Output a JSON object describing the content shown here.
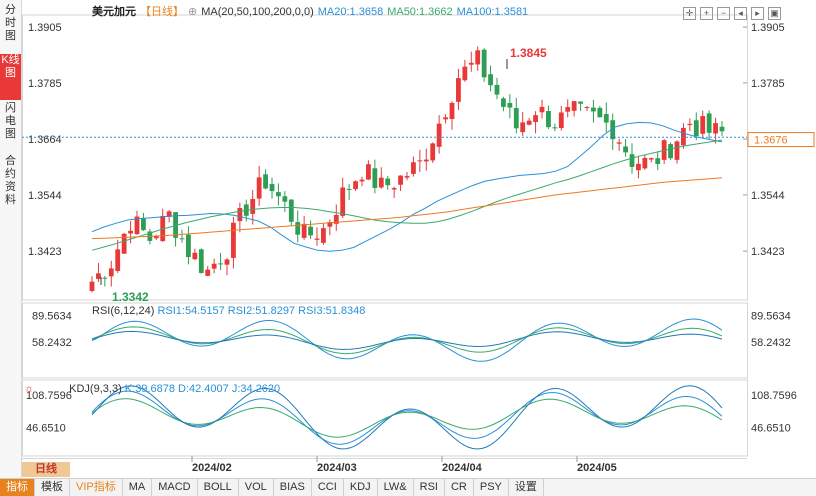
{
  "left_tabs": [
    "分时图",
    "K线图",
    "闪电图",
    "合约资料"
  ],
  "header": {
    "symbol": "美元加元",
    "period_tag": "【日线】",
    "ma_label": "MA(20,50,100,200,0,0)",
    "ma_values": [
      "MA20:1.3658",
      "MA50:1.3662",
      "MA100:1.3581"
    ]
  },
  "rsi_header": {
    "label": "RSI(6,12,24)",
    "values": [
      "RSI1:54.5157",
      "RSI2:51.8297",
      "RSI3:51.8348"
    ]
  },
  "kdj_header": {
    "label": "KDJ(9,3,3)",
    "values": [
      "K:39.6878",
      "D:42.4007",
      "J:34.2620"
    ]
  },
  "period_button": "日线",
  "bottom_tabs": [
    "指标",
    "模板",
    "VIP指标",
    "MA",
    "MACD",
    "BOLL",
    "VOL",
    "BIAS",
    "CCI",
    "KDJ",
    "LW&",
    "RSI",
    "CR",
    "PSY",
    "设置"
  ],
  "colors": {
    "up": "#e83838",
    "down": "#2d9e53",
    "ma20": "#2a90d8",
    "ma50": "#3aaa6a",
    "ma100": "#ee7a22",
    "current": "#ee7a22"
  },
  "chart_data": {
    "type": "candlestick",
    "price_axis": {
      "ticks": [
        1.3905,
        1.3785,
        1.3664,
        1.3544,
        1.3423
      ],
      "ylim": [
        1.3318,
        1.3931
      ]
    },
    "date_labels": [
      "2024/02",
      "2024/03",
      "2024/04",
      "2024/05"
    ],
    "high_marker": "1.3845",
    "low_marker": "1.3342",
    "current_price": "1.3676",
    "ma_series": [
      {
        "name": "MA20",
        "values": [
          1.3465,
          1.3475,
          1.3483,
          1.349,
          1.3493,
          1.3495,
          1.3497,
          1.3499,
          1.35,
          1.3502,
          1.3504,
          1.3503,
          1.35,
          1.3494,
          1.3488,
          1.3475,
          1.3457,
          1.344,
          1.3432,
          1.3425,
          1.3423,
          1.3425,
          1.3431,
          1.3444,
          1.3457,
          1.347,
          1.3485,
          1.3502,
          1.3515,
          1.353,
          1.3542,
          1.3553,
          1.3564,
          1.3573,
          1.3578,
          1.3582,
          1.3586,
          1.3588,
          1.359,
          1.3595,
          1.3605,
          1.3626,
          1.3648,
          1.3672,
          1.369,
          1.3697,
          1.37,
          1.3699,
          1.3693,
          1.3683,
          1.3675,
          1.3668,
          1.3663,
          1.3658
        ]
      },
      {
        "name": "MA50",
        "values": [
          1.3425,
          1.3432,
          1.3439,
          1.3447,
          1.3455,
          1.3463,
          1.3471,
          1.3478,
          1.3485,
          1.3491,
          1.3497,
          1.3502,
          1.3507,
          1.3511,
          1.3514,
          1.3516,
          1.3517,
          1.3517,
          1.3515,
          1.3512,
          1.3508,
          1.3504,
          1.3499,
          1.3494,
          1.3489,
          1.3486,
          1.3484,
          1.3483,
          1.3483,
          1.3486,
          1.3492,
          1.35,
          1.3509,
          1.3519,
          1.3529,
          1.3538,
          1.3546,
          1.3554,
          1.3562,
          1.357,
          1.3577,
          1.3585,
          1.3594,
          1.3603,
          1.3612,
          1.362,
          1.3627,
          1.3633,
          1.3639,
          1.3645,
          1.365,
          1.3654,
          1.3658,
          1.3662
        ]
      },
      {
        "name": "MA100",
        "values": [
          1.345,
          1.3451,
          1.3452,
          1.3453,
          1.3454,
          1.3455,
          1.3456,
          1.3458,
          1.346,
          1.3462,
          1.3464,
          1.3466,
          1.3468,
          1.347,
          1.3472,
          1.3474,
          1.3476,
          1.3478,
          1.348,
          1.3482,
          1.3484,
          1.3486,
          1.3488,
          1.349,
          1.3492,
          1.3494,
          1.3496,
          1.3499,
          1.3502,
          1.3505,
          1.3508,
          1.3512,
          1.3516,
          1.352,
          1.3524,
          1.3528,
          1.3532,
          1.3536,
          1.354,
          1.3544,
          1.3547,
          1.355,
          1.3553,
          1.3556,
          1.3559,
          1.3562,
          1.3565,
          1.3568,
          1.3571,
          1.3573,
          1.3575,
          1.3577,
          1.3579,
          1.3581
        ]
      }
    ],
    "rsi_axis": {
      "ticks": [
        89.5634,
        58.2432
      ],
      "ylim": [
        20,
        100
      ]
    },
    "kdj_axis": {
      "ticks": [
        108.7596,
        46.651
      ],
      "ylim": [
        0,
        130
      ]
    }
  }
}
